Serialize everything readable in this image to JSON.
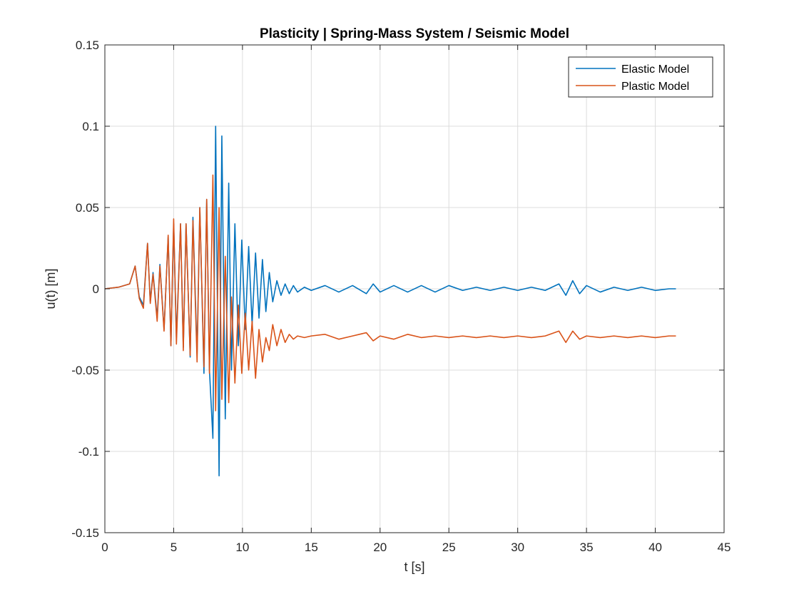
{
  "chart_data": {
    "type": "line",
    "title": "Plasticity | Spring-Mass System / Seismic Model",
    "xlabel": "t [s]",
    "ylabel": "u(t) [m]",
    "xlim": [
      0,
      45
    ],
    "ylim": [
      -0.15,
      0.15
    ],
    "xticks": [
      0,
      5,
      10,
      15,
      20,
      25,
      30,
      35,
      40,
      45
    ],
    "xtick_labels": [
      "0",
      "5",
      "10",
      "15",
      "20",
      "25",
      "30",
      "35",
      "40",
      "45"
    ],
    "yticks": [
      -0.15,
      -0.1,
      -0.05,
      0,
      0.05,
      0.1,
      0.15
    ],
    "ytick_labels": [
      "-0.15",
      "-0.1",
      "-0.05",
      "0",
      "0.05",
      "0.1",
      "0.15"
    ],
    "grid": true,
    "legend_position": "top-right",
    "series": [
      {
        "name": "Elastic Model",
        "color": "#0072BD",
        "x": [
          0,
          1.0,
          1.8,
          2.2,
          2.5,
          2.8,
          3.1,
          3.3,
          3.5,
          3.8,
          4.0,
          4.3,
          4.6,
          4.8,
          5.0,
          5.2,
          5.5,
          5.7,
          5.9,
          6.2,
          6.4,
          6.7,
          6.9,
          7.2,
          7.4,
          7.6,
          7.85,
          8.05,
          8.3,
          8.5,
          8.75,
          9.0,
          9.2,
          9.45,
          9.7,
          9.95,
          10.2,
          10.45,
          10.7,
          10.95,
          11.2,
          11.45,
          11.7,
          11.95,
          12.2,
          12.5,
          12.8,
          13.1,
          13.4,
          13.7,
          14.0,
          14.5,
          15.0,
          16.0,
          17.0,
          18.0,
          19.0,
          19.5,
          20.0,
          21.0,
          22.0,
          23.0,
          24.0,
          25.0,
          26.0,
          27.0,
          28.0,
          29.0,
          30.0,
          31.0,
          32.0,
          33.0,
          33.5,
          34.0,
          34.5,
          35.0,
          36.0,
          37.0,
          38.0,
          39.0,
          40.0,
          41.0,
          41.5
        ],
        "y": [
          0,
          0.001,
          0.003,
          0.014,
          -0.005,
          -0.01,
          0.028,
          -0.008,
          0.01,
          -0.018,
          0.015,
          -0.025,
          0.032,
          -0.035,
          0.04,
          -0.03,
          0.04,
          -0.036,
          0.04,
          -0.042,
          0.044,
          -0.04,
          0.05,
          -0.052,
          0.055,
          -0.05,
          -0.092,
          0.1,
          -0.115,
          0.094,
          -0.08,
          0.065,
          -0.05,
          0.04,
          -0.035,
          0.03,
          -0.025,
          0.026,
          -0.022,
          0.022,
          -0.018,
          0.018,
          -0.014,
          0.01,
          -0.008,
          0.005,
          -0.004,
          0.003,
          -0.003,
          0.002,
          -0.002,
          0.001,
          -0.001,
          0.002,
          -0.002,
          0.002,
          -0.003,
          0.003,
          -0.002,
          0.002,
          -0.002,
          0.002,
          -0.002,
          0.002,
          -0.001,
          0.001,
          -0.001,
          0.001,
          -0.001,
          0.001,
          -0.001,
          0.003,
          -0.004,
          0.005,
          -0.003,
          0.002,
          -0.002,
          0.001,
          -0.001,
          0.001,
          -0.001,
          0.0,
          0.0
        ]
      },
      {
        "name": "Plastic Model",
        "color": "#D95319",
        "x": [
          0,
          1.0,
          1.8,
          2.2,
          2.5,
          2.8,
          3.1,
          3.3,
          3.5,
          3.8,
          4.0,
          4.3,
          4.6,
          4.8,
          5.0,
          5.2,
          5.5,
          5.7,
          5.9,
          6.2,
          6.4,
          6.7,
          6.9,
          7.2,
          7.4,
          7.6,
          7.85,
          8.05,
          8.3,
          8.5,
          8.75,
          9.0,
          9.2,
          9.45,
          9.7,
          9.95,
          10.2,
          10.45,
          10.7,
          10.95,
          11.2,
          11.45,
          11.7,
          11.95,
          12.2,
          12.5,
          12.8,
          13.1,
          13.4,
          13.7,
          14.0,
          14.5,
          15.0,
          16.0,
          17.0,
          18.0,
          19.0,
          19.5,
          20.0,
          21.0,
          22.0,
          23.0,
          24.0,
          25.0,
          26.0,
          27.0,
          28.0,
          29.0,
          30.0,
          31.0,
          32.0,
          33.0,
          33.5,
          34.0,
          34.5,
          35.0,
          36.0,
          37.0,
          38.0,
          39.0,
          40.0,
          41.0,
          41.5
        ],
        "y": [
          0,
          0.001,
          0.003,
          0.014,
          -0.006,
          -0.012,
          0.028,
          -0.009,
          0.009,
          -0.02,
          0.014,
          -0.026,
          0.033,
          -0.035,
          0.043,
          -0.034,
          0.04,
          -0.038,
          0.04,
          -0.041,
          0.042,
          -0.045,
          0.05,
          -0.048,
          0.055,
          -0.052,
          0.07,
          -0.075,
          0.05,
          -0.068,
          0.02,
          -0.07,
          -0.005,
          -0.058,
          -0.01,
          -0.052,
          -0.015,
          -0.05,
          -0.02,
          -0.055,
          -0.025,
          -0.045,
          -0.03,
          -0.038,
          -0.022,
          -0.035,
          -0.025,
          -0.033,
          -0.028,
          -0.031,
          -0.029,
          -0.03,
          -0.029,
          -0.028,
          -0.031,
          -0.029,
          -0.027,
          -0.032,
          -0.029,
          -0.031,
          -0.028,
          -0.03,
          -0.029,
          -0.03,
          -0.029,
          -0.03,
          -0.029,
          -0.03,
          -0.029,
          -0.03,
          -0.029,
          -0.026,
          -0.033,
          -0.026,
          -0.031,
          -0.029,
          -0.03,
          -0.029,
          -0.03,
          -0.029,
          -0.03,
          -0.029,
          -0.029
        ]
      }
    ]
  }
}
